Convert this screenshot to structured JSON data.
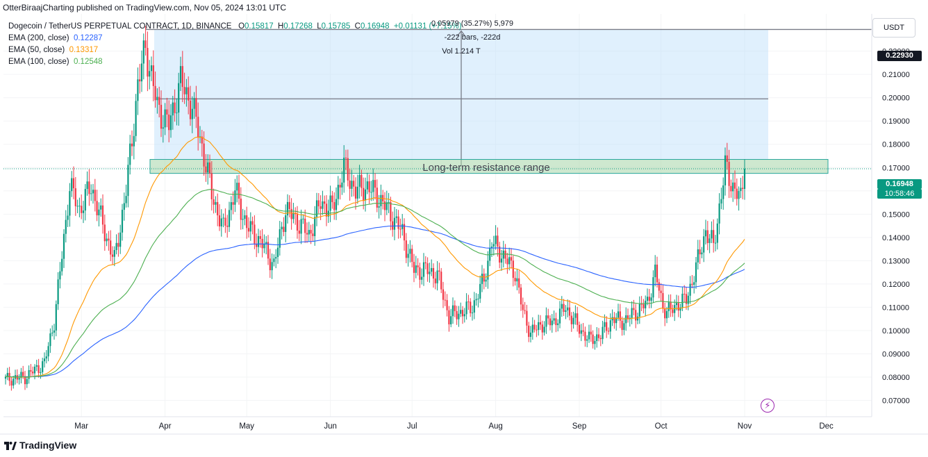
{
  "published": "OtterBiraajCharting published on TradingView.com, Nov 05, 2024 13:01 UTC",
  "legend": {
    "symbol": "Dogecoin / TetherUS PERPETUAL CONTRACT, 1D, BINANCE",
    "open_label": "O",
    "open": "0.15817",
    "high_label": "H",
    "high": "0.17268",
    "low_label": "L",
    "low": "0.15785",
    "close_label": "C",
    "close": "0.16948",
    "change": "+0.01131 (+7.15%)",
    "ema200_label": "EMA (200, close)",
    "ema200": "0.12287",
    "ema50_label": "EMA (50, close)",
    "ema50": "0.13317",
    "ema100_label": "EMA (100, close)",
    "ema100": "0.12548"
  },
  "measure": {
    "line1": "0.05979 (35.27%) 5,979",
    "line2": "-222 bars, -222d",
    "line3": "Vol 1.214 T"
  },
  "annotation": "Long-term resistance range",
  "currency": "USDT",
  "price_badges": {
    "top": "0.22930",
    "current": "0.16948",
    "countdown": "10:58:46"
  },
  "logo_text": "TradingView",
  "colors": {
    "up": "#089981",
    "down": "#f23645",
    "ema200": "#2962ff",
    "ema50": "#ff9800",
    "ema100": "#4caf50",
    "zone": "#a5d6a7",
    "range": "#bbdefb"
  },
  "chart_data": {
    "type": "candlestick",
    "title": "Dogecoin / TetherUS PERPETUAL CONTRACT, 1D, BINANCE",
    "xlabel": "",
    "ylabel": "",
    "ylim": [
      0.063,
      0.236
    ],
    "x_ticks": [
      "Mar",
      "Apr",
      "May",
      "Jun",
      "Jul",
      "Aug",
      "Sep",
      "Oct",
      "Nov",
      "Dec"
    ],
    "y_ticks": [
      "0.07000",
      "0.08000",
      "0.09000",
      "0.10000",
      "0.11000",
      "0.12000",
      "0.13000",
      "0.14000",
      "0.15000",
      "0.16000",
      "0.17000",
      "0.18000",
      "0.19000",
      "0.20000",
      "0.21000",
      "0.22000"
    ],
    "resistance_zone": [
      0.1675,
      0.1735
    ],
    "range_top": 0.2293,
    "horizontal_level": 0.1995,
    "series": [
      {
        "name": "EMA (200, close)",
        "last": 0.12287
      },
      {
        "name": "EMA (50, close)",
        "last": 0.13317
      },
      {
        "name": "EMA (100, close)",
        "last": 0.12548
      }
    ],
    "close_path": [
      [
        0,
        0.079
      ],
      [
        10,
        0.08
      ],
      [
        20,
        0.086
      ],
      [
        25,
        0.104
      ],
      [
        28,
        0.125
      ],
      [
        33,
        0.162
      ],
      [
        38,
        0.152
      ],
      [
        44,
        0.162
      ],
      [
        50,
        0.145
      ],
      [
        56,
        0.13
      ],
      [
        62,
        0.16
      ],
      [
        68,
        0.205
      ],
      [
        72,
        0.222
      ],
      [
        78,
        0.196
      ],
      [
        84,
        0.188
      ],
      [
        90,
        0.207
      ],
      [
        96,
        0.196
      ],
      [
        100,
        0.183
      ],
      [
        106,
        0.159
      ],
      [
        112,
        0.143
      ],
      [
        118,
        0.16
      ],
      [
        124,
        0.145
      ],
      [
        132,
        0.137
      ],
      [
        138,
        0.128
      ],
      [
        144,
        0.152
      ],
      [
        150,
        0.147
      ],
      [
        156,
        0.141
      ],
      [
        162,
        0.155
      ],
      [
        168,
        0.152
      ],
      [
        174,
        0.17
      ],
      [
        180,
        0.16
      ],
      [
        186,
        0.162
      ],
      [
        192,
        0.157
      ],
      [
        198,
        0.15
      ],
      [
        204,
        0.142
      ],
      [
        210,
        0.126
      ],
      [
        216,
        0.126
      ],
      [
        222,
        0.124
      ],
      [
        228,
        0.106
      ],
      [
        234,
        0.108
      ],
      [
        240,
        0.11
      ],
      [
        246,
        0.122
      ],
      [
        250,
        0.138
      ],
      [
        256,
        0.132
      ],
      [
        262,
        0.125
      ],
      [
        266,
        0.108
      ],
      [
        270,
        0.099
      ],
      [
        276,
        0.103
      ],
      [
        282,
        0.104
      ],
      [
        288,
        0.11
      ],
      [
        294,
        0.102
      ],
      [
        300,
        0.096
      ],
      [
        306,
        0.098
      ],
      [
        312,
        0.105
      ],
      [
        318,
        0.104
      ],
      [
        324,
        0.108
      ],
      [
        330,
        0.112
      ],
      [
        334,
        0.125
      ],
      [
        338,
        0.11
      ],
      [
        342,
        0.108
      ],
      [
        346,
        0.112
      ],
      [
        350,
        0.113
      ],
      [
        356,
        0.13
      ],
      [
        360,
        0.143
      ],
      [
        364,
        0.136
      ],
      [
        370,
        0.17
      ],
      [
        374,
        0.162
      ],
      [
        378,
        0.156
      ],
      [
        380,
        0.169
      ]
    ]
  }
}
